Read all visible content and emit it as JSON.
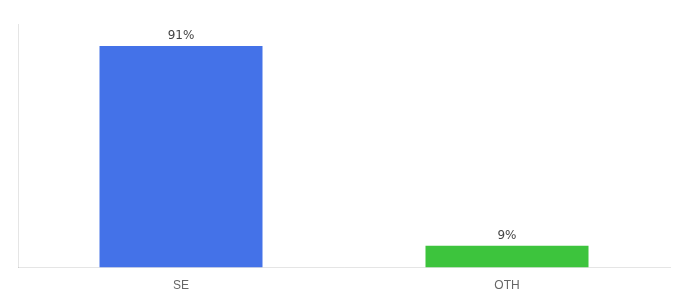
{
  "chart_data": {
    "type": "bar",
    "categories": [
      "SE",
      "OTH"
    ],
    "values": [
      91,
      9
    ],
    "colors": [
      "#4472e8",
      "#3dc43d"
    ],
    "ylim": [
      0,
      100
    ],
    "data_labels": true,
    "value_labels": [
      "91%",
      "9%"
    ],
    "tick_labels": "x",
    "grid": false
  }
}
